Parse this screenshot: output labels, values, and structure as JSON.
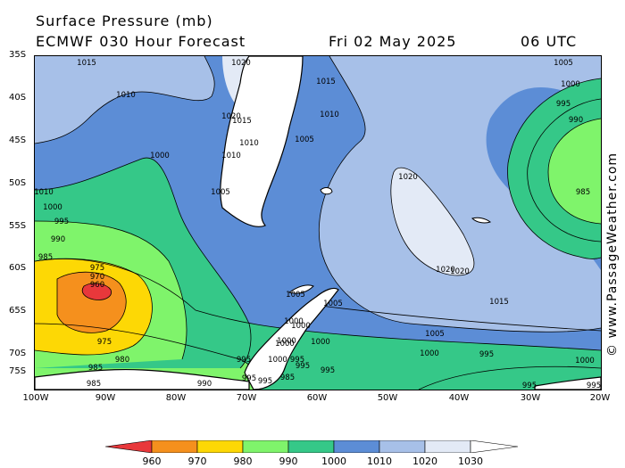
{
  "header": {
    "title": "Surface Pressure (mb)",
    "model": "ECMWF 030 Hour Forecast",
    "date": "Fri 02 May 2025",
    "time": "06 UTC"
  },
  "copyright": "© www.PassageWeather.com",
  "lat_labels": [
    "35S",
    "40S",
    "45S",
    "50S",
    "55S",
    "60S",
    "65S",
    "70S",
    "75S"
  ],
  "lon_labels": [
    "100W",
    "90W",
    "80W",
    "70W",
    "60W",
    "50W",
    "40W",
    "30W",
    "20W"
  ],
  "legend": {
    "values": [
      "960",
      "970",
      "980",
      "990",
      "1000",
      "1010",
      "1020",
      "1030"
    ],
    "colors": [
      "#e8383b",
      "#f5901d",
      "#fdd805",
      "#7ff46b",
      "#35c888",
      "#5c8dd6",
      "#a7c0e8",
      "#e3eaf6",
      "#ffffff"
    ]
  },
  "fill_colors": {
    "c960": "#e8383b",
    "c970": "#f5901d",
    "c980": "#fdd805",
    "c990": "#7ff46b",
    "c1000": "#35c888",
    "c1010": "#5c8dd6",
    "c1020": "#a7c0e8",
    "c1030": "#e3eaf6"
  },
  "isobar_labels": [
    "1015",
    "1020",
    "1010",
    "1015",
    "1010",
    "1010",
    "1020",
    "1015",
    "1010",
    "1005",
    "1010",
    "1000",
    "1005",
    "1005",
    "1000",
    "995",
    "990",
    "985",
    "975",
    "970",
    "960",
    "975",
    "980",
    "985",
    "985",
    "995",
    "995",
    "990",
    "995",
    "995",
    "1000",
    "1000",
    "1005",
    "1000",
    "1000",
    "1000",
    "1000",
    "995",
    "995",
    "995",
    "985",
    "995",
    "1020",
    "1020",
    "1020",
    "1015",
    "1005",
    "1000",
    "1000",
    "995",
    "995",
    "1005",
    "1000",
    "995",
    "990",
    "985"
  ]
}
